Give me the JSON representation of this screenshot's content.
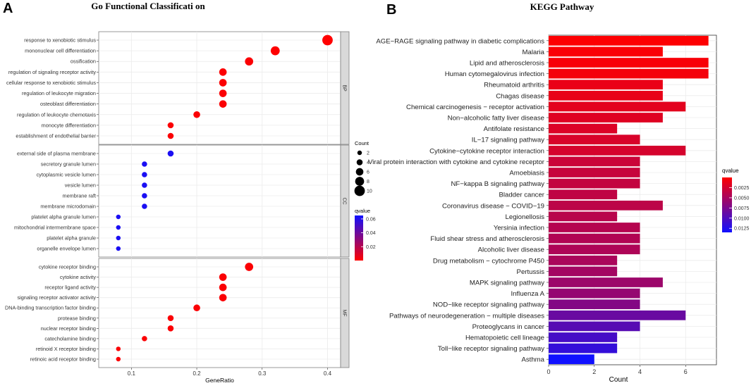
{
  "panel_a_label": "A",
  "panel_b_label": "B",
  "chart_data": [
    {
      "type": "scatter",
      "title": "Go Functional Classificati on",
      "xlabel": "GeneRatio",
      "ylabel": "",
      "xlim": [
        0.05,
        0.42
      ],
      "xticks": [
        0.1,
        0.2,
        0.3,
        0.4
      ],
      "xtick_labels": [
        "0.1",
        "0.2",
        "0.3",
        "0.4"
      ],
      "facets": [
        {
          "name": "BP",
          "terms": [
            {
              "label": "response to xenobiotic stimulus",
              "x": 0.4,
              "count": 10,
              "qvalue": 0.0001
            },
            {
              "label": "mononuclear cell differentiation",
              "x": 0.32,
              "count": 8,
              "qvalue": 0.0003
            },
            {
              "label": "ossification",
              "x": 0.28,
              "count": 7,
              "qvalue": 0.001
            },
            {
              "label": "regulation of signaling receptor activity",
              "x": 0.24,
              "count": 6,
              "qvalue": 0.0008
            },
            {
              "label": "cellular response to xenobiotic stimulus",
              "x": 0.24,
              "count": 6,
              "qvalue": 0.0008
            },
            {
              "label": "regulation of leukocyte migration",
              "x": 0.24,
              "count": 6,
              "qvalue": 0.001
            },
            {
              "label": "osteoblast differentiation",
              "x": 0.24,
              "count": 6,
              "qvalue": 0.001
            },
            {
              "label": "regulation of leukocyte chemotaxis",
              "x": 0.2,
              "count": 5,
              "qvalue": 0.001
            },
            {
              "label": "monocyte differentiation",
              "x": 0.16,
              "count": 4,
              "qvalue": 0.001
            },
            {
              "label": "establishment of endothelial barrier",
              "x": 0.16,
              "count": 4,
              "qvalue": 0.001
            }
          ]
        },
        {
          "name": "CC",
          "terms": [
            {
              "label": "external side of plasma membrane",
              "x": 0.16,
              "count": 4,
              "qvalue": 0.062
            },
            {
              "label": "secretory granule lumen",
              "x": 0.12,
              "count": 3,
              "qvalue": 0.062
            },
            {
              "label": "cytoplasmic vesicle lumen",
              "x": 0.12,
              "count": 3,
              "qvalue": 0.062
            },
            {
              "label": "vesicle lumen",
              "x": 0.12,
              "count": 3,
              "qvalue": 0.062
            },
            {
              "label": "membrane raft",
              "x": 0.12,
              "count": 3,
              "qvalue": 0.062
            },
            {
              "label": "membrane microdomain",
              "x": 0.12,
              "count": 3,
              "qvalue": 0.062
            },
            {
              "label": "platelet alpha granule lumen",
              "x": 0.08,
              "count": 2,
              "qvalue": 0.062
            },
            {
              "label": "mitochondrial intermembrane space",
              "x": 0.08,
              "count": 2,
              "qvalue": 0.062
            },
            {
              "label": "platelet alpha granule",
              "x": 0.08,
              "count": 2,
              "qvalue": 0.062
            },
            {
              "label": "organelle envelope lumen",
              "x": 0.08,
              "count": 2,
              "qvalue": 0.062
            }
          ]
        },
        {
          "name": "MF",
          "terms": [
            {
              "label": "cytokine receptor binding",
              "x": 0.28,
              "count": 7,
              "qvalue": 0.001
            },
            {
              "label": "cytokine activity",
              "x": 0.24,
              "count": 6,
              "qvalue": 0.001
            },
            {
              "label": "receptor ligand activity",
              "x": 0.24,
              "count": 6,
              "qvalue": 0.001
            },
            {
              "label": "signaling receptor activator activity",
              "x": 0.24,
              "count": 6,
              "qvalue": 0.001
            },
            {
              "label": "DNA-binding transcription factor binding",
              "x": 0.2,
              "count": 5,
              "qvalue": 0.001
            },
            {
              "label": "protease binding",
              "x": 0.16,
              "count": 4,
              "qvalue": 0.001
            },
            {
              "label": "nuclear receptor binding",
              "x": 0.16,
              "count": 4,
              "qvalue": 0.001
            },
            {
              "label": "catecholamine binding",
              "x": 0.12,
              "count": 3,
              "qvalue": 0.001
            },
            {
              "label": "retinoid X receptor binding",
              "x": 0.08,
              "count": 2,
              "qvalue": 0.001
            },
            {
              "label": "retinoic acid receptor binding",
              "x": 0.08,
              "count": 2,
              "qvalue": 0.001
            }
          ]
        }
      ],
      "legend_count": {
        "title": "Count",
        "values": [
          2,
          4,
          6,
          8,
          10
        ],
        "labels": [
          "2",
          "4",
          "6",
          "8",
          "10"
        ]
      },
      "legend_qvalue": {
        "title": "qvalue",
        "ticks": [
          0.06,
          0.04,
          0.02
        ],
        "labels": [
          "0.06",
          "0.04",
          "0.02"
        ],
        "range": [
          0,
          0.065
        ]
      },
      "colors": {
        "high": "#ff0000",
        "low": "#1010ff"
      }
    },
    {
      "type": "bar",
      "orientation": "horizontal",
      "title": "KEGG Pathway",
      "xlabel": "Count",
      "ylabel": "",
      "xlim": [
        0,
        7.35
      ],
      "xticks": [
        0,
        2,
        4,
        6
      ],
      "xtick_labels": [
        "0",
        "2",
        "4",
        "6"
      ],
      "categories": [
        "AGE−RAGE signaling pathway in diabetic complications",
        "Malaria",
        "Lipid and atherosclerosis",
        "Human cytomegalovirus infection",
        "Rheumatoid arthritis",
        "Chagas disease",
        "Chemical carcinogenesis − receptor activation",
        "Non−alcoholic fatty liver disease",
        "Antifolate resistance",
        "IL−17 signaling pathway",
        "Cytokine−cytokine receptor interaction",
        "Viral protein interaction with cytokine and cytokine receptor",
        "Amoebiasis",
        "NF−kappa B signaling pathway",
        "Bladder cancer",
        "Coronavirus disease − COVID−19",
        "Legionellosis",
        "Yersinia infection",
        "Fluid shear stress and atherosclerosis",
        "Alcoholic liver disease",
        "Drug metabolism − cytochrome P450",
        "Pertussis",
        "MAPK signaling pathway",
        "Influenza A",
        "NOD−like receptor signaling pathway",
        "Pathways of neurodegeneration − multiple diseases",
        "Proteoglycans in cancer",
        "Hematopoietic cell lineage",
        "Toll−like receptor signaling pathway",
        "Asthma"
      ],
      "values": [
        7,
        5,
        7,
        7,
        5,
        5,
        6,
        5,
        3,
        4,
        6,
        4,
        4,
        4,
        3,
        5,
        3,
        4,
        4,
        4,
        3,
        3,
        5,
        4,
        4,
        6,
        4,
        3,
        3,
        2
      ],
      "qvalues": [
        0.0001,
        0.0003,
        0.0004,
        0.0006,
        0.0012,
        0.0013,
        0.0016,
        0.0018,
        0.002,
        0.0022,
        0.0024,
        0.003,
        0.0032,
        0.0034,
        0.0036,
        0.0038,
        0.004,
        0.0042,
        0.0044,
        0.0046,
        0.0048,
        0.0052,
        0.0056,
        0.006,
        0.007,
        0.0085,
        0.0095,
        0.0105,
        0.0115,
        0.0135
      ],
      "legend_qvalue": {
        "title": "qvalue",
        "ticks": [
          0.0025,
          0.005,
          0.0075,
          0.01,
          0.0125
        ],
        "labels": [
          "0.0025",
          "0.0050",
          "0.0075",
          "0.0100",
          "0.0125"
        ],
        "range": [
          0,
          0.0135
        ]
      },
      "colors": {
        "high": "#ff0000",
        "low": "#1010ff"
      }
    }
  ]
}
